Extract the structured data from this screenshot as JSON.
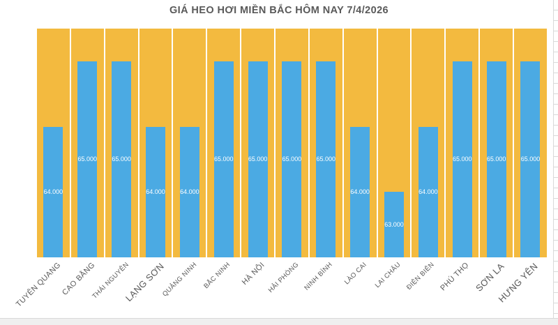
{
  "title": "GIÁ HEO HƠI MIỀN BẮC HÔM NAY 7/4/2026",
  "colors": {
    "value_bar": "#4BAAE3",
    "filler_column": "#F3BA3F",
    "title_text": "#595959",
    "axis_text": "#595959",
    "bar_value_text": "#FFFFFF",
    "sheet_gridline": "#D9D9D9",
    "bottom_strip": "#EFEFEF",
    "page_background": "#FFFFFF"
  },
  "chart_data": {
    "type": "bar",
    "title": "GIÁ HEO HƠI MIỀN BẮC HÔM NAY 7/4/2026",
    "categories": [
      "TUYÊN QUANG",
      "CAO BẰNG",
      "THÁI NGUYÊN",
      "LẠNG SƠN",
      "QUẢNG NINH",
      "BẮC NINH",
      "HÀ NỘI",
      "HẢI PHÒNG",
      "NINH BÌNH",
      "LÀO CAI",
      "LAI CHÂU",
      "ĐIỆN BIÊN",
      "PHÚ THỌ",
      "SƠN LA",
      "HƯNG YÊN"
    ],
    "values": [
      64000,
      65000,
      65000,
      64000,
      64000,
      65000,
      65000,
      65000,
      65000,
      64000,
      63000,
      64000,
      65000,
      65000,
      65000
    ],
    "value_labels": [
      "64.000",
      "65.000",
      "65.000",
      "64.000",
      "64.000",
      "65.000",
      "65.000",
      "65.000",
      "65.000",
      "64.000",
      "63.000",
      "64.000",
      "65.000",
      "65.000",
      "65.000"
    ],
    "category_label_sizes": [
      "m",
      "m",
      "s",
      "l",
      "s",
      "s",
      "m",
      "s",
      "s",
      "s",
      "s",
      "s",
      "m",
      "l",
      "l"
    ],
    "xlabel": "",
    "ylabel": "",
    "ylim": [
      62000,
      65500
    ],
    "grid": false,
    "legend": false,
    "data_label_position": "inside-center",
    "background_columns": "full-height gold filler behind each value bar"
  }
}
